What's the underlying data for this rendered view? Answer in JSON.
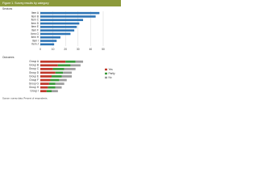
{
  "header": {
    "title": "Figure 1. Survey results by category"
  },
  "chart_data": [
    {
      "type": "bar",
      "title": "Services",
      "categories": [
        "Item A",
        "Item B",
        "Item C",
        "Item D",
        "Item E",
        "Item F",
        "Item G",
        "Item H",
        "Item I",
        "Item J"
      ],
      "values": [
        47,
        44,
        34,
        31,
        29,
        27,
        24,
        16,
        13,
        11
      ],
      "color": "#2e75b6",
      "xlim": [
        0,
        50
      ],
      "xticks": [
        0,
        10,
        20,
        30,
        40,
        50
      ]
    },
    {
      "type": "stacked_bar",
      "title": "Outcomes",
      "categories": [
        "Group A",
        "Group B",
        "Group C",
        "Group D",
        "Group E",
        "Group F",
        "Group G",
        "Group H",
        "Group I"
      ],
      "series": [
        {
          "name": "Yes",
          "color": "#c0392b",
          "values": [
            20,
            14,
            10,
            12,
            9,
            8,
            7,
            6,
            5
          ]
        },
        {
          "name": "Partly",
          "color": "#3a9a3a",
          "values": [
            8,
            10,
            9,
            6,
            8,
            7,
            5,
            6,
            4
          ]
        },
        {
          "name": "No",
          "color": "#9e9e9e",
          "values": [
            6,
            8,
            9,
            7,
            8,
            6,
            7,
            5,
            5
          ]
        }
      ],
      "xlim": [
        0,
        50
      ]
    }
  ],
  "notes": "Source: survey data. Percent of respondents."
}
